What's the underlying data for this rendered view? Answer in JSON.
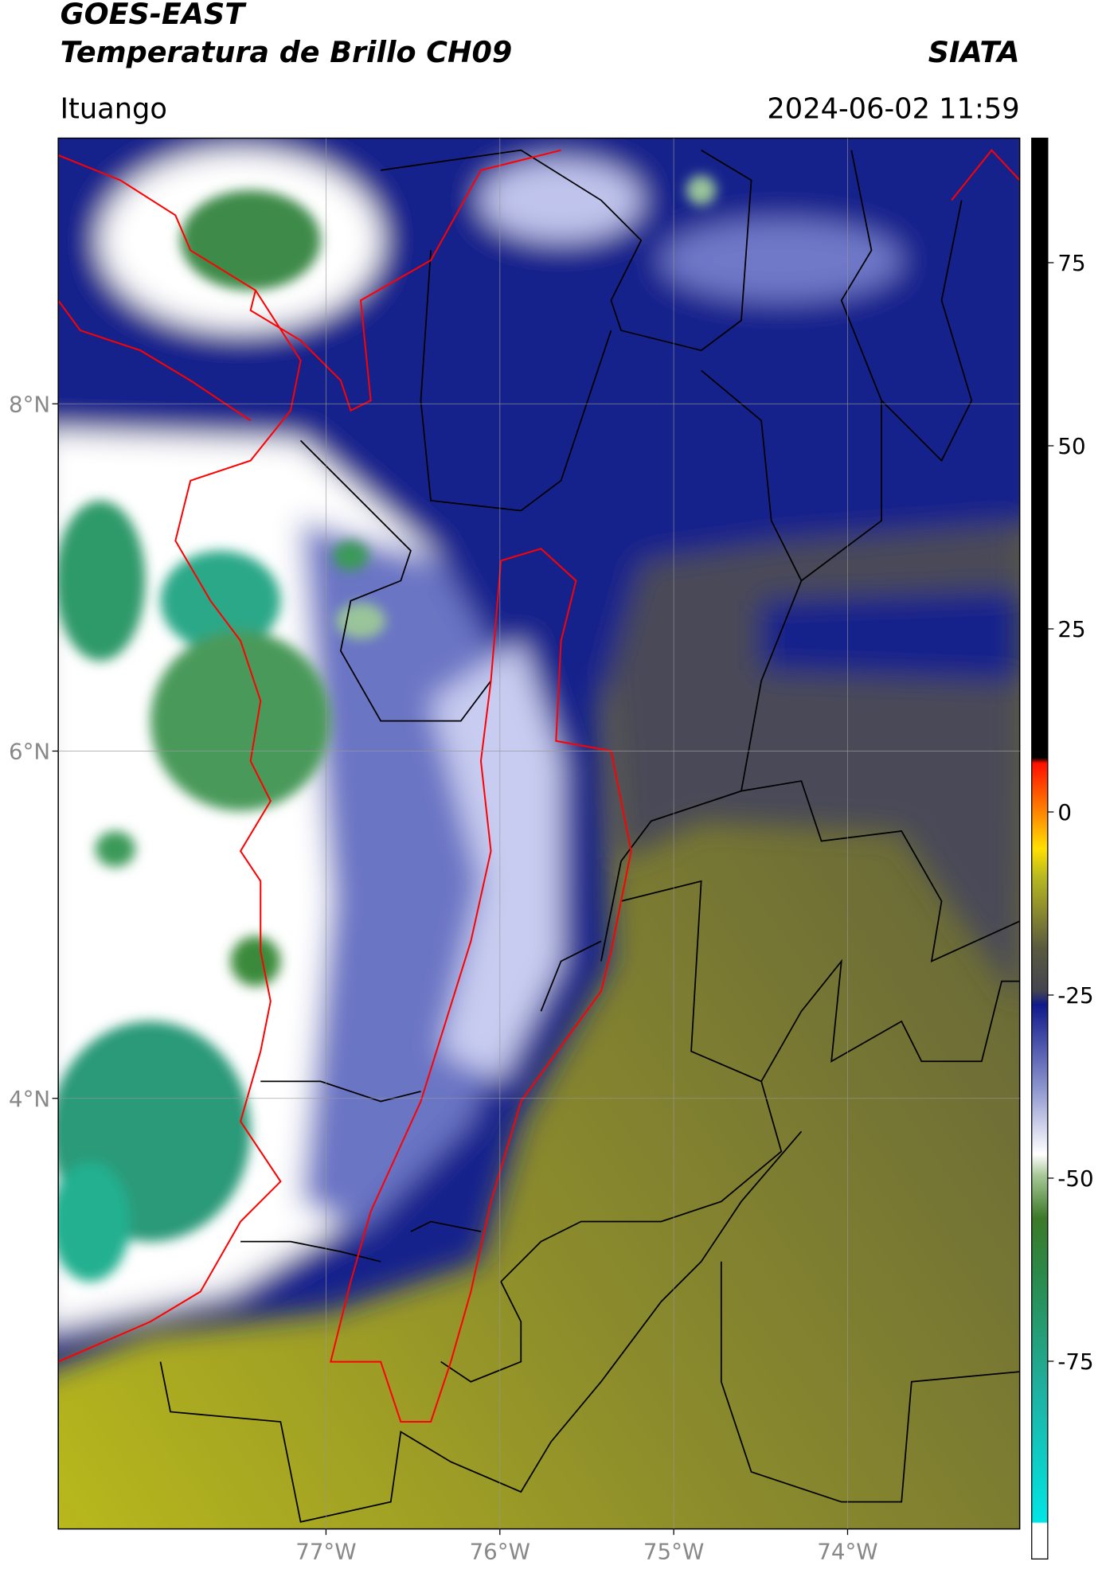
{
  "header": {
    "title": "GOES-EAST",
    "subtitle": "Temperatura de Brillo CH09",
    "source": "SIATA",
    "location": "Ituango",
    "timestamp": "2024-06-02 11:59"
  },
  "map": {
    "lat_range": [
      1.52,
      9.53
    ],
    "lon_range": [
      -78.54,
      -73.01
    ],
    "lat_ticks": [
      {
        "value": 8,
        "label": "8°N"
      },
      {
        "value": 6,
        "label": "6°N"
      },
      {
        "value": 4,
        "label": "4°N"
      }
    ],
    "lon_ticks": [
      {
        "value": -77,
        "label": "77°W"
      },
      {
        "value": -76,
        "label": "76°W"
      },
      {
        "value": -75,
        "label": "75°W"
      },
      {
        "value": -74,
        "label": "74°W"
      }
    ],
    "grid": true
  },
  "colorbar": {
    "range": [
      -102,
      92
    ],
    "ticks": [
      75,
      50,
      25,
      0,
      -25,
      -50,
      -75
    ]
  }
}
